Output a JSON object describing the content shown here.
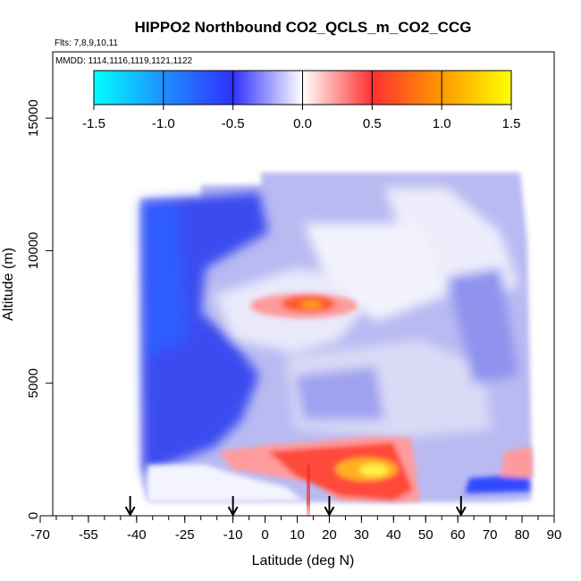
{
  "chart_data": {
    "type": "heatmap",
    "title": "HIPPO2 Northbound CO2_QCLS_m_CO2_CCG",
    "subtitle_flights": "Flts: 7,8,9,10,11",
    "subtitle_dates": "MMDD: 1114,1116,1119,1121,1122",
    "xlabel": "Latitude (deg N)",
    "ylabel": "Altitude (m)",
    "xlim": [
      -70,
      90
    ],
    "ylim": [
      0,
      17500
    ],
    "xticks": [
      -70,
      -55,
      -40,
      -25,
      -10,
      0,
      10,
      20,
      30,
      40,
      50,
      60,
      70,
      80,
      90
    ],
    "xtick_labels": [
      "-70",
      "-55",
      "-40",
      "-25",
      "-10",
      "0",
      "10",
      "20",
      "30",
      "40",
      "50",
      "60",
      "70",
      "80",
      "90"
    ],
    "yticks": [
      0,
      5000,
      10000,
      15000
    ],
    "ytick_labels": [
      "0",
      "5000",
      "10000",
      "15000"
    ],
    "colorbar": {
      "range": [
        -1.5,
        1.5
      ],
      "ticks": [
        -1.5,
        -1.0,
        -0.5,
        0.0,
        0.5,
        1.0,
        1.5
      ],
      "tick_labels": [
        "-1.5",
        "-1.0",
        "-0.5",
        "0.0",
        "0.5",
        "1.0",
        "1.5"
      ],
      "colors": [
        "#00ffff",
        "#1e90ff",
        "#3030ff",
        "#ffffff",
        "#ff3030",
        "#ff9900",
        "#ffff00"
      ]
    },
    "flight_markers_lat": [
      -42,
      -10,
      20,
      61
    ],
    "data_lon_range": [
      -42,
      82
    ],
    "data_alt_range": [
      0,
      13500
    ],
    "field_features": [
      {
        "lat": [
          -42,
          -30
        ],
        "alt": [
          0,
          12400
        ],
        "value": -0.6
      },
      {
        "lat": [
          -42,
          -36
        ],
        "alt": [
          11000,
          12400
        ],
        "value": -0.85
      },
      {
        "lat": [
          -35,
          -15
        ],
        "alt": [
          3500,
          7500
        ],
        "value": -0.5
      },
      {
        "lat": [
          -20,
          82
        ],
        "alt": [
          9000,
          13500
        ],
        "value": -0.3
      },
      {
        "lat": [
          5,
          25
        ],
        "alt": [
          7500,
          9000
        ],
        "value": 0.65
      },
      {
        "lat": [
          -20,
          45
        ],
        "alt": [
          1000,
          2700
        ],
        "value": 0.5
      },
      {
        "lat": [
          25,
          40
        ],
        "alt": [
          1200,
          2200
        ],
        "value": 1.05
      },
      {
        "lat": [
          60,
          82
        ],
        "alt": [
          800,
          1500
        ],
        "value": -0.55
      },
      {
        "lat": [
          45,
          80
        ],
        "alt": [
          3000,
          7000
        ],
        "value": -0.3
      }
    ]
  }
}
